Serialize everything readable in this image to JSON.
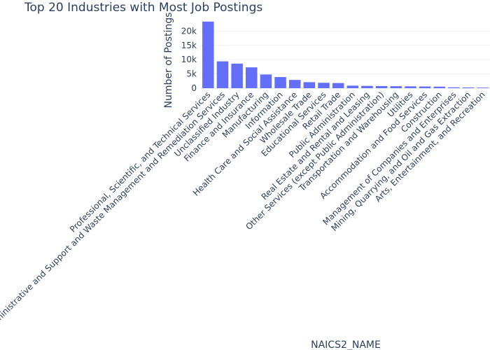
{
  "chart_data": {
    "type": "bar",
    "title": "Top 20 Industries with Most Job Postings",
    "xlabel": "NAICS2_NAME",
    "ylabel": "Number of Postings",
    "ylim": [
      0,
      24000
    ],
    "yticks": [
      0,
      5000,
      10000,
      15000,
      20000
    ],
    "ytick_labels": [
      "0",
      "5k",
      "10k",
      "15k",
      "20k"
    ],
    "grid": true,
    "bar_color": "#636efa",
    "categories": [
      "Professional, Scientific, and Technical Services",
      "Administrative and Support and Waste Management and Remediation Services",
      "Unclassified Industry",
      "Finance and Insurance",
      "Manufacturing",
      "Information",
      "Health Care and Social Assistance",
      "Wholesale Trade",
      "Educational Services",
      "Retail Trade",
      "Public Administration",
      "Real Estate and Rental and Leasing",
      "Other Services (except Public Administration)",
      "Transportation and Warehousing",
      "Utilities",
      "Accommodation and Food Services",
      "Construction",
      "Management of Companies and Enterprises",
      "Mining, Quarrying, and Oil and Gas Extraction",
      "Arts, Entertainment, and Recreation"
    ],
    "values": [
      23300,
      9400,
      8600,
      7300,
      4800,
      3900,
      2900,
      2100,
      1900,
      1800,
      900,
      800,
      750,
      700,
      650,
      600,
      550,
      300,
      250,
      200
    ]
  }
}
